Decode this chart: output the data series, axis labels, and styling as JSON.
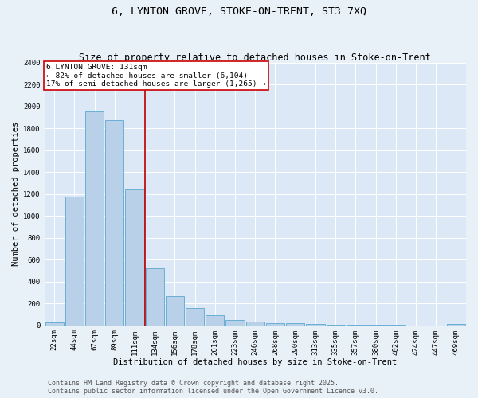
{
  "title1": "6, LYNTON GROVE, STOKE-ON-TRENT, ST3 7XQ",
  "title2": "Size of property relative to detached houses in Stoke-on-Trent",
  "xlabel": "Distribution of detached houses by size in Stoke-on-Trent",
  "ylabel": "Number of detached properties",
  "categories": [
    "22sqm",
    "44sqm",
    "67sqm",
    "89sqm",
    "111sqm",
    "134sqm",
    "156sqm",
    "178sqm",
    "201sqm",
    "223sqm",
    "246sqm",
    "268sqm",
    "290sqm",
    "313sqm",
    "335sqm",
    "357sqm",
    "380sqm",
    "402sqm",
    "424sqm",
    "447sqm",
    "469sqm"
  ],
  "values": [
    25,
    1175,
    1950,
    1875,
    1240,
    520,
    270,
    155,
    90,
    48,
    37,
    18,
    18,
    10,
    5,
    4,
    2,
    2,
    1,
    1,
    10
  ],
  "bar_color": "#b8d0e8",
  "bar_edge_color": "#6aafd6",
  "bg_color": "#e8f0f8",
  "plot_bg_color": "#dce8f5",
  "vline_x": 4.5,
  "vline_color": "#bb0000",
  "annotation_title": "6 LYNTON GROVE: 131sqm",
  "annotation_line1": "← 82% of detached houses are smaller (6,104)",
  "annotation_line2": "17% of semi-detached houses are larger (1,265) →",
  "annotation_box_color": "#cc0000",
  "footer1": "Contains HM Land Registry data © Crown copyright and database right 2025.",
  "footer2": "Contains public sector information licensed under the Open Government Licence v3.0.",
  "ylim": [
    0,
    2400
  ],
  "yticks": [
    0,
    200,
    400,
    600,
    800,
    1000,
    1200,
    1400,
    1600,
    1800,
    2000,
    2200,
    2400
  ],
  "title_fontsize": 9.5,
  "subtitle_fontsize": 8.5,
  "axis_label_fontsize": 7.5,
  "tick_fontsize": 6.5,
  "annotation_fontsize": 6.8,
  "footer_fontsize": 6.0
}
